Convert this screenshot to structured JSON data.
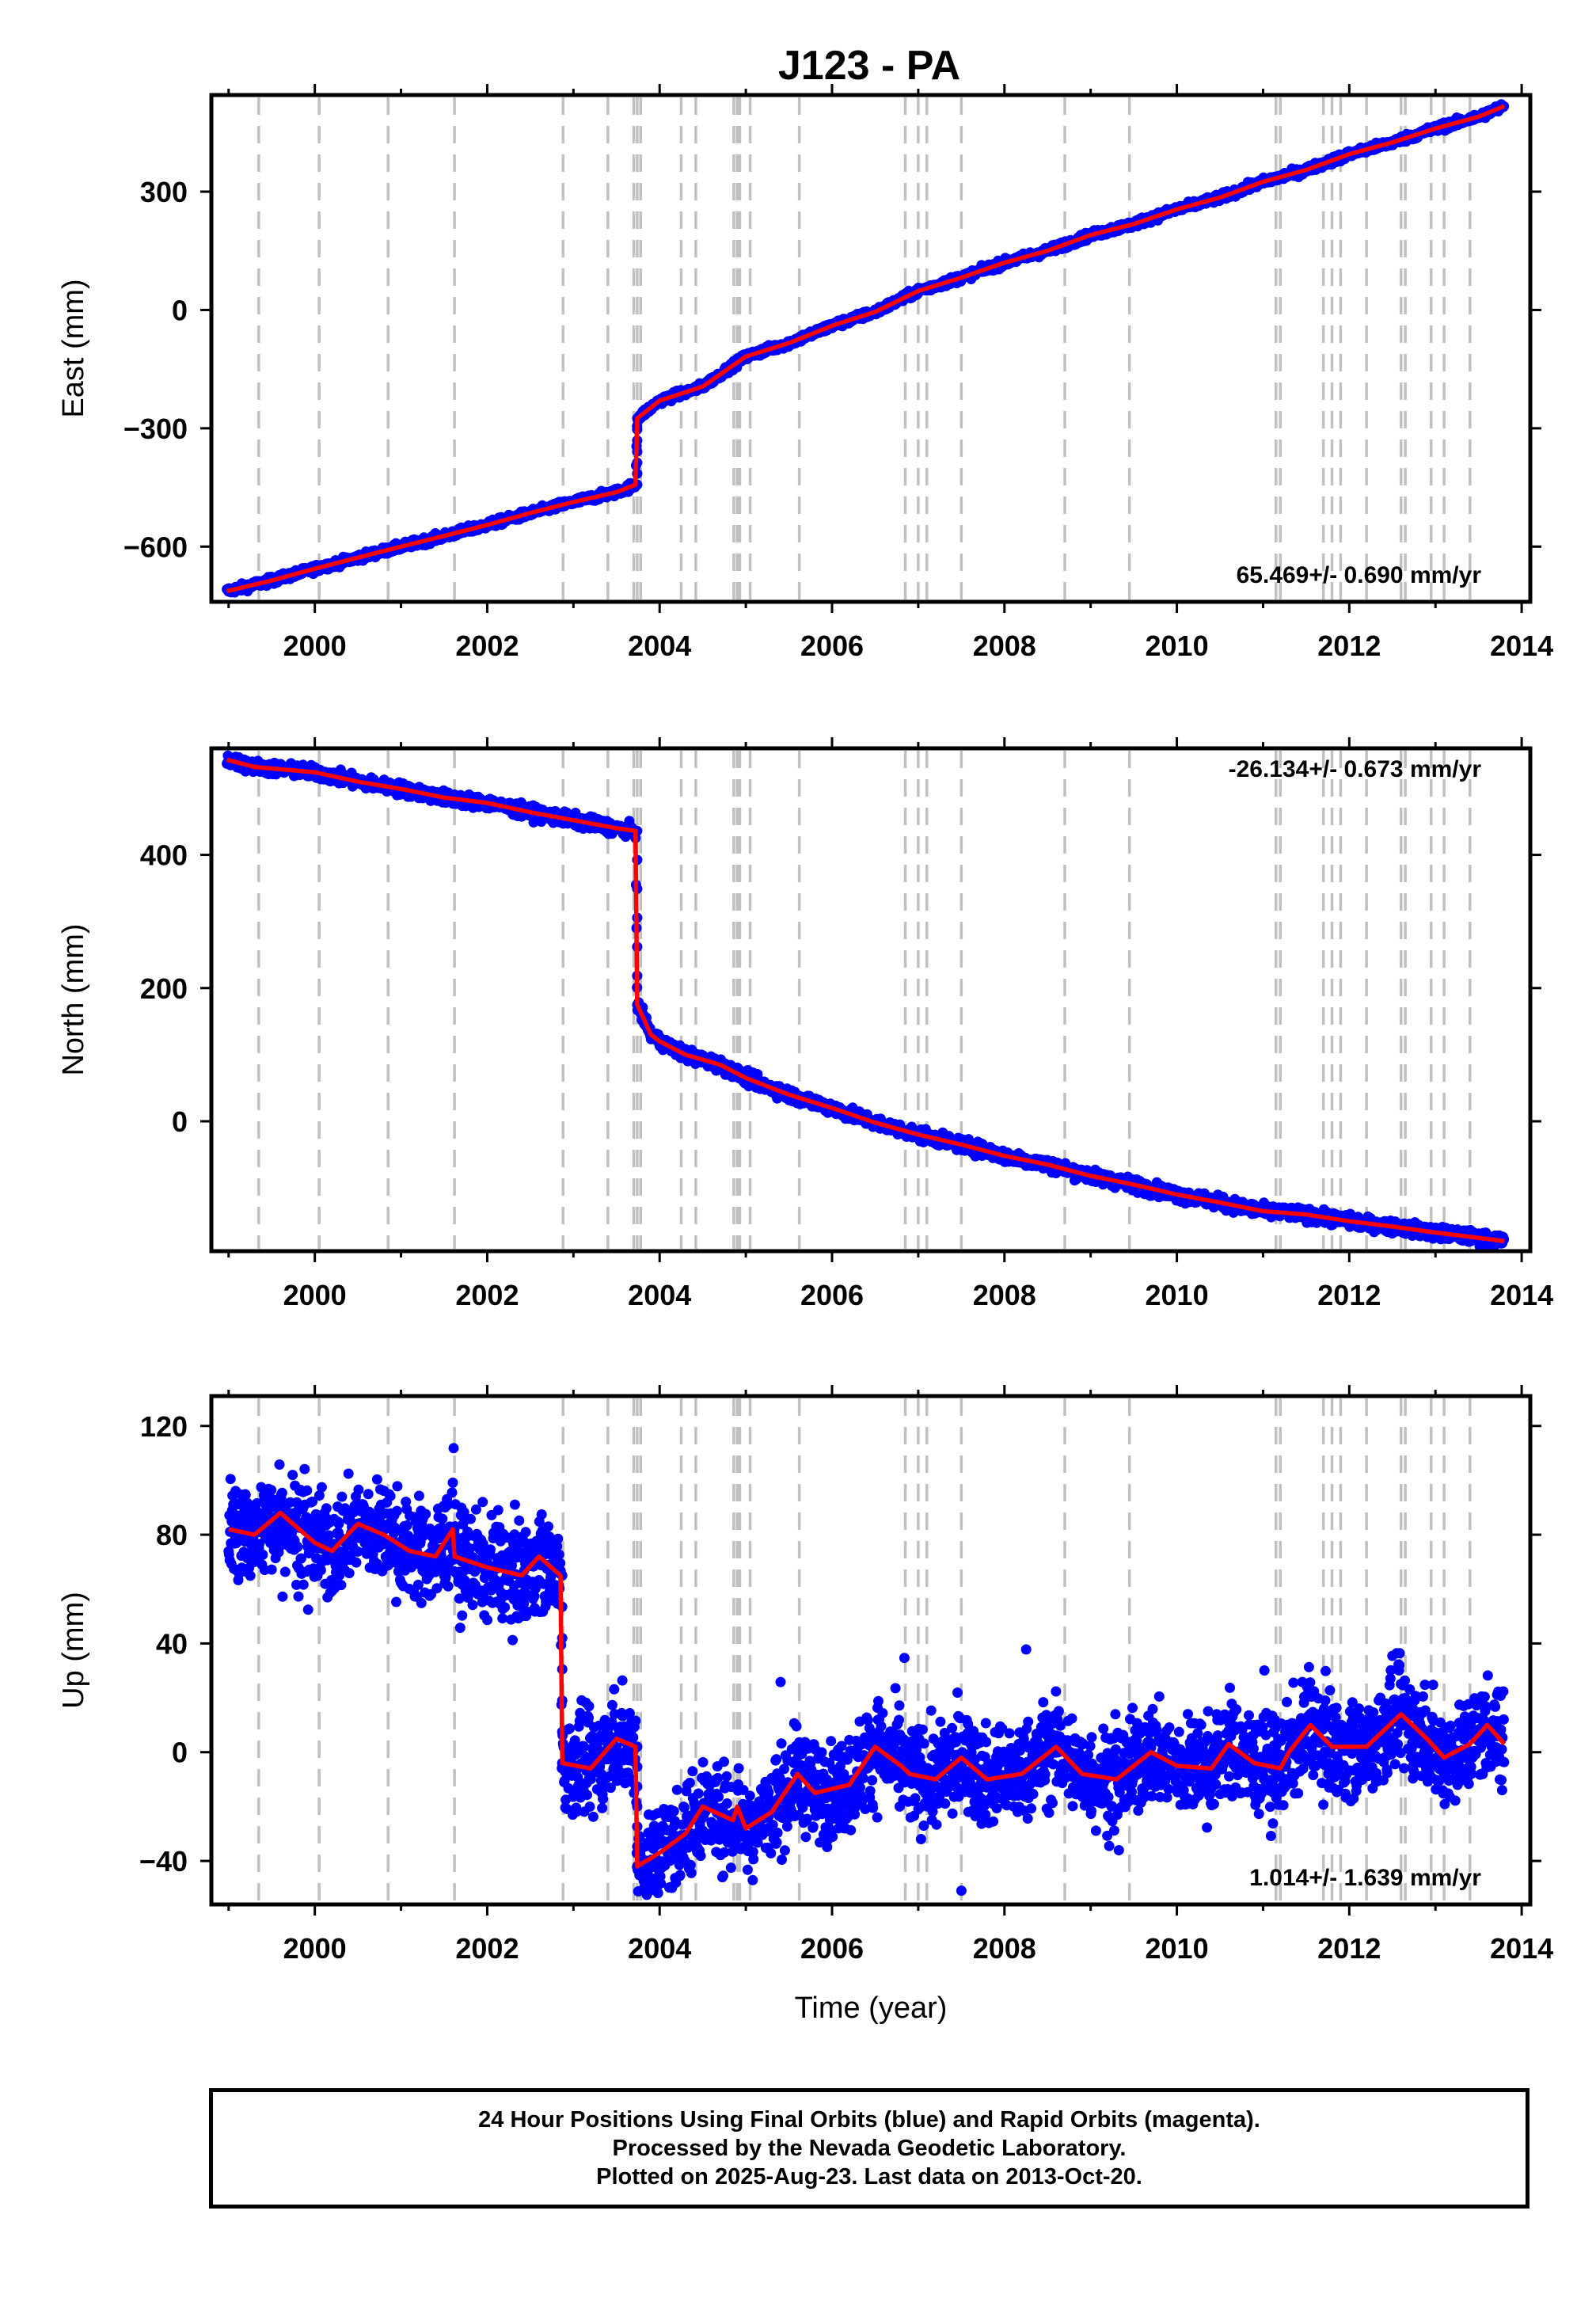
{
  "title": "J123 - PA",
  "footer": {
    "line1": "24 Hour Positions Using Final Orbits (blue) and Rapid Orbits (magenta).",
    "line2": "Processed by the Nevada Geodetic Laboratory.",
    "line3": "Plotted on 2025-Aug-23. Last data on 2013-Oct-20."
  },
  "colors": {
    "data": "#0000ff",
    "model": "#ff0000",
    "event_lines": "#c0c0c0"
  },
  "chart_data": [
    {
      "type": "scatter",
      "panel": "east",
      "title": "J123 - PA",
      "xlabel": "",
      "ylabel": "East (mm)",
      "xlim": [
        1998.8,
        2014.1
      ],
      "ylim": [
        -740,
        545
      ],
      "xticks": [
        "2000",
        "2002",
        "2004",
        "2006",
        "2008",
        "2010",
        "2012",
        "2014"
      ],
      "yticks": [
        "−600",
        "−300",
        "0",
        "300"
      ],
      "rate_label": "65.469+/- 0.690 mm/yr",
      "grid": false,
      "series": [
        {
          "role": "positions",
          "points": [
            [
              1998.98,
              -713
            ],
            [
              1999.5,
              -686
            ],
            [
              2000,
              -656
            ],
            [
              2000.5,
              -628
            ],
            [
              2001,
              -600
            ],
            [
              2001.5,
              -573
            ],
            [
              2002,
              -545
            ],
            [
              2002.5,
              -515
            ],
            [
              2003,
              -487
            ],
            [
              2003.5,
              -462
            ],
            [
              2003.72,
              -443
            ],
            [
              2003.74,
              -275
            ],
            [
              2004,
              -230
            ],
            [
              2004.5,
              -194
            ],
            [
              2005,
              -118
            ],
            [
              2005.5,
              -84
            ],
            [
              2006,
              -40
            ],
            [
              2006.5,
              -5
            ],
            [
              2007,
              48
            ],
            [
              2007.5,
              82
            ],
            [
              2008,
              120
            ],
            [
              2008.5,
              150
            ],
            [
              2009,
              190
            ],
            [
              2009.5,
              218
            ],
            [
              2010,
              255
            ],
            [
              2010.5,
              285
            ],
            [
              2011,
              325
            ],
            [
              2011.5,
              355
            ],
            [
              2012,
              395
            ],
            [
              2012.5,
              425
            ],
            [
              2013,
              460
            ],
            [
              2013.5,
              490
            ],
            [
              2013.8,
              517
            ]
          ]
        },
        {
          "role": "model",
          "points": [
            [
              1998.98,
              -713
            ],
            [
              1999.5,
              -686
            ],
            [
              2000,
              -656
            ],
            [
              2000.5,
              -628
            ],
            [
              2001,
              -600
            ],
            [
              2001.5,
              -573
            ],
            [
              2002,
              -545
            ],
            [
              2002.5,
              -515
            ],
            [
              2003,
              -487
            ],
            [
              2003.5,
              -462
            ],
            [
              2003.72,
              -443
            ],
            [
              2003.74,
              -275
            ],
            [
              2004,
              -230
            ],
            [
              2004.5,
              -194
            ],
            [
              2005,
              -118
            ],
            [
              2005.5,
              -84
            ],
            [
              2006,
              -40
            ],
            [
              2006.5,
              -5
            ],
            [
              2007,
              48
            ],
            [
              2007.5,
              82
            ],
            [
              2008,
              120
            ],
            [
              2008.5,
              150
            ],
            [
              2009,
              190
            ],
            [
              2009.5,
              218
            ],
            [
              2010,
              255
            ],
            [
              2010.5,
              285
            ],
            [
              2011,
              325
            ],
            [
              2011.5,
              355
            ],
            [
              2012,
              395
            ],
            [
              2012.5,
              425
            ],
            [
              2013,
              460
            ],
            [
              2013.5,
              490
            ],
            [
              2013.8,
              517
            ]
          ]
        }
      ]
    },
    {
      "type": "scatter",
      "panel": "north",
      "xlabel": "",
      "ylabel": "North (mm)",
      "xlim": [
        1998.8,
        2014.1
      ],
      "ylim": [
        -195,
        560
      ],
      "xticks": [
        "2000",
        "2002",
        "2004",
        "2006",
        "2008",
        "2010",
        "2012",
        "2014"
      ],
      "yticks": [
        "0",
        "200",
        "400"
      ],
      "rate_label": "-26.134+/- 0.673 mm/yr",
      "grid": false,
      "series": [
        {
          "role": "positions",
          "points": [
            [
              1998.98,
              543
            ],
            [
              1999.3,
              532
            ],
            [
              2000,
              524
            ],
            [
              2000.5,
              510
            ],
            [
              2001,
              499
            ],
            [
              2001.5,
              486
            ],
            [
              2002,
              478
            ],
            [
              2002.5,
              464
            ],
            [
              2003,
              452
            ],
            [
              2003.5,
              440
            ],
            [
              2003.72,
              436
            ],
            [
              2003.74,
              175
            ],
            [
              2003.9,
              130
            ],
            [
              2004,
              120
            ],
            [
              2004.3,
              100
            ],
            [
              2004.7,
              85
            ],
            [
              2005,
              65
            ],
            [
              2005.5,
              40
            ],
            [
              2006,
              20
            ],
            [
              2006.5,
              -2
            ],
            [
              2007,
              -20
            ],
            [
              2007.5,
              -35
            ],
            [
              2008,
              -52
            ],
            [
              2008.5,
              -65
            ],
            [
              2009,
              -82
            ],
            [
              2009.5,
              -95
            ],
            [
              2010,
              -110
            ],
            [
              2010.5,
              -122
            ],
            [
              2011,
              -135
            ],
            [
              2011.5,
              -140
            ],
            [
              2012,
              -150
            ],
            [
              2012.5,
              -158
            ],
            [
              2013,
              -167
            ],
            [
              2013.5,
              -175
            ],
            [
              2013.8,
              -180
            ]
          ]
        },
        {
          "role": "model",
          "points": [
            [
              1998.98,
              543
            ],
            [
              1999.3,
              532
            ],
            [
              2000,
              524
            ],
            [
              2000.5,
              510
            ],
            [
              2001,
              499
            ],
            [
              2001.5,
              486
            ],
            [
              2002,
              478
            ],
            [
              2002.5,
              464
            ],
            [
              2003,
              452
            ],
            [
              2003.5,
              440
            ],
            [
              2003.72,
              436
            ],
            [
              2003.74,
              175
            ],
            [
              2003.9,
              130
            ],
            [
              2004,
              120
            ],
            [
              2004.3,
              100
            ],
            [
              2004.7,
              85
            ],
            [
              2005,
              65
            ],
            [
              2005.5,
              40
            ],
            [
              2006,
              20
            ],
            [
              2006.5,
              -2
            ],
            [
              2007,
              -20
            ],
            [
              2007.5,
              -35
            ],
            [
              2008,
              -52
            ],
            [
              2008.5,
              -65
            ],
            [
              2009,
              -82
            ],
            [
              2009.5,
              -95
            ],
            [
              2010,
              -110
            ],
            [
              2010.5,
              -122
            ],
            [
              2011,
              -135
            ],
            [
              2011.5,
              -140
            ],
            [
              2012,
              -150
            ],
            [
              2012.5,
              -158
            ],
            [
              2013,
              -167
            ],
            [
              2013.5,
              -175
            ],
            [
              2013.8,
              -180
            ]
          ]
        }
      ]
    },
    {
      "type": "scatter",
      "panel": "up",
      "xlabel": "Time (year)",
      "ylabel": "Up (mm)",
      "xlim": [
        1998.8,
        2014.1
      ],
      "ylim": [
        -56,
        131
      ],
      "xticks": [
        "2000",
        "2002",
        "2004",
        "2006",
        "2008",
        "2010",
        "2012",
        "2014"
      ],
      "yticks": [
        "−40",
        "0",
        "40",
        "80",
        "120"
      ],
      "rate_label": "1.014+/- 1.639 mm/yr",
      "grid": false,
      "series": [
        {
          "role": "positions",
          "spread": 9,
          "points": [
            [
              1999,
              82
            ],
            [
              1999.3,
              80
            ],
            [
              1999.6,
              88
            ],
            [
              2000,
              77
            ],
            [
              2000.2,
              74
            ],
            [
              2000.5,
              84
            ],
            [
              2000.8,
              80
            ],
            [
              2001.1,
              74
            ],
            [
              2001.4,
              72
            ],
            [
              2001.6,
              82
            ],
            [
              2001.62,
              72
            ],
            [
              2002,
              68
            ],
            [
              2002.4,
              65
            ],
            [
              2002.6,
              72
            ],
            [
              2002.85,
              65
            ],
            [
              2002.87,
              -4
            ],
            [
              2003.2,
              -6
            ],
            [
              2003.5,
              5
            ],
            [
              2003.72,
              2
            ],
            [
              2003.74,
              -42
            ],
            [
              2004,
              -37
            ],
            [
              2004.3,
              -30
            ],
            [
              2004.5,
              -20
            ],
            [
              2004.85,
              -25
            ],
            [
              2004.9,
              -20
            ],
            [
              2005,
              -28
            ],
            [
              2005.3,
              -22
            ],
            [
              2005.6,
              -8
            ],
            [
              2005.8,
              -15
            ],
            [
              2006.2,
              -12
            ],
            [
              2006.5,
              2
            ],
            [
              2006.8,
              -5
            ],
            [
              2006.9,
              -8
            ],
            [
              2007.2,
              -10
            ],
            [
              2007.5,
              -2
            ],
            [
              2007.8,
              -10
            ],
            [
              2008.2,
              -8
            ],
            [
              2008.6,
              2
            ],
            [
              2008.9,
              -8
            ],
            [
              2009.3,
              -10
            ],
            [
              2009.7,
              0
            ],
            [
              2010,
              -5
            ],
            [
              2010.4,
              -6
            ],
            [
              2010.6,
              3
            ],
            [
              2010.9,
              -4
            ],
            [
              2011.2,
              -6
            ],
            [
              2011.3,
              0
            ],
            [
              2011.55,
              10
            ],
            [
              2011.8,
              2
            ],
            [
              2012.2,
              2
            ],
            [
              2012.6,
              14
            ],
            [
              2012.9,
              5
            ],
            [
              2013.1,
              -2
            ],
            [
              2013.4,
              3
            ],
            [
              2013.6,
              10
            ],
            [
              2013.8,
              3
            ]
          ]
        },
        {
          "role": "model",
          "points": [
            [
              1999,
              82
            ],
            [
              1999.3,
              80
            ],
            [
              1999.6,
              88
            ],
            [
              2000,
              77
            ],
            [
              2000.2,
              74
            ],
            [
              2000.5,
              84
            ],
            [
              2000.8,
              80
            ],
            [
              2001.1,
              74
            ],
            [
              2001.4,
              72
            ],
            [
              2001.6,
              82
            ],
            [
              2001.62,
              72
            ],
            [
              2002,
              68
            ],
            [
              2002.4,
              65
            ],
            [
              2002.6,
              72
            ],
            [
              2002.85,
              65
            ],
            [
              2002.87,
              -4
            ],
            [
              2003.2,
              -6
            ],
            [
              2003.5,
              5
            ],
            [
              2003.72,
              2
            ],
            [
              2003.74,
              -42
            ],
            [
              2004,
              -37
            ],
            [
              2004.3,
              -30
            ],
            [
              2004.5,
              -20
            ],
            [
              2004.85,
              -25
            ],
            [
              2004.9,
              -20
            ],
            [
              2005,
              -28
            ],
            [
              2005.3,
              -22
            ],
            [
              2005.6,
              -8
            ],
            [
              2005.8,
              -15
            ],
            [
              2006.2,
              -12
            ],
            [
              2006.5,
              2
            ],
            [
              2006.8,
              -5
            ],
            [
              2006.9,
              -8
            ],
            [
              2007.2,
              -10
            ],
            [
              2007.5,
              -2
            ],
            [
              2007.8,
              -10
            ],
            [
              2008.2,
              -8
            ],
            [
              2008.6,
              2
            ],
            [
              2008.9,
              -8
            ],
            [
              2009.3,
              -10
            ],
            [
              2009.7,
              0
            ],
            [
              2010,
              -5
            ],
            [
              2010.4,
              -6
            ],
            [
              2010.6,
              3
            ],
            [
              2010.9,
              -4
            ],
            [
              2011.2,
              -6
            ],
            [
              2011.3,
              0
            ],
            [
              2011.55,
              10
            ],
            [
              2011.8,
              2
            ],
            [
              2012.2,
              2
            ],
            [
              2012.6,
              14
            ],
            [
              2012.9,
              5
            ],
            [
              2013.1,
              -2
            ],
            [
              2013.4,
              3
            ],
            [
              2013.6,
              10
            ],
            [
              2013.8,
              3
            ]
          ]
        }
      ]
    }
  ],
  "event_lines": [
    1999.35,
    2000.05,
    2000.85,
    2001.62,
    2002.88,
    2003.4,
    2003.7,
    2003.74,
    2003.78,
    2004.25,
    2004.42,
    2004.86,
    2004.9,
    2004.93,
    2005.05,
    2005.62,
    2006.85,
    2007.0,
    2007.1,
    2007.5,
    2008.7,
    2009.45,
    2011.15,
    2011.2,
    2011.7,
    2011.8,
    2011.9,
    2012.2,
    2012.6,
    2012.65,
    2012.95,
    2013.1,
    2013.4
  ]
}
